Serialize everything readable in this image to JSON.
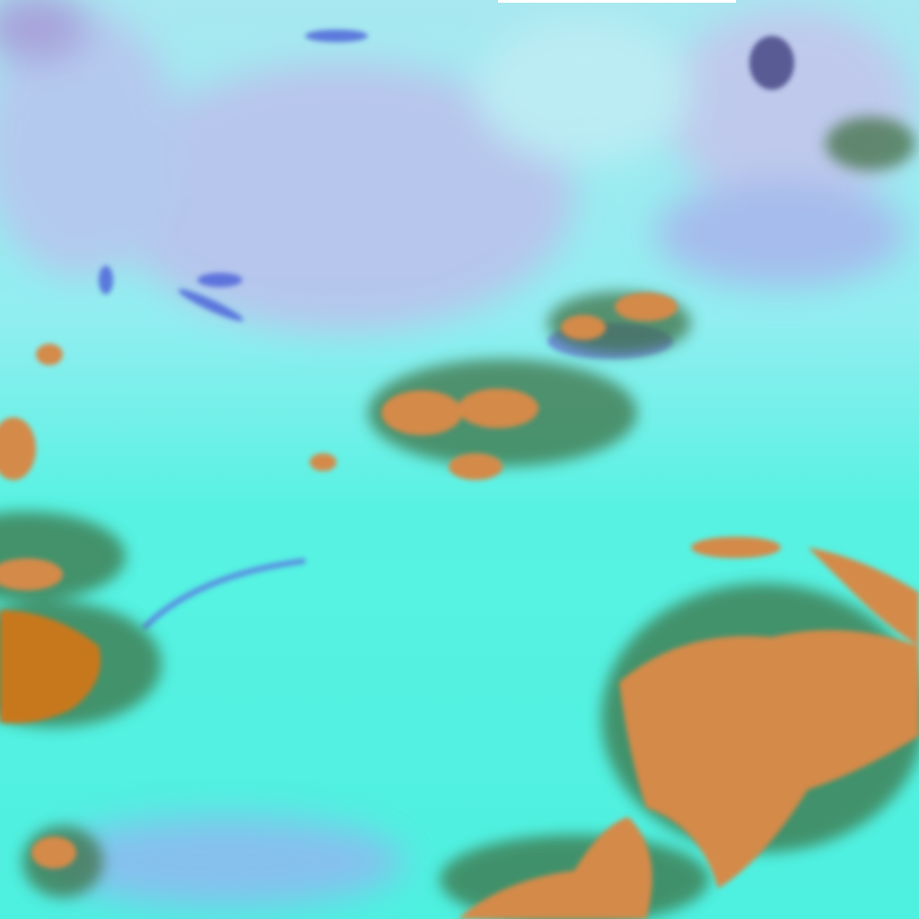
{
  "image": {
    "kind": "false-color satellite scene",
    "colors": {
      "cloud_cyan": "#55f2e2",
      "bright_cyan": "#8ffaf0",
      "lavender_land": "#b9c2ee",
      "blue_streak": "#5a6ee0",
      "orange_surface": "#d48a48",
      "dark_green_edge": "#3a6a3a"
    }
  }
}
